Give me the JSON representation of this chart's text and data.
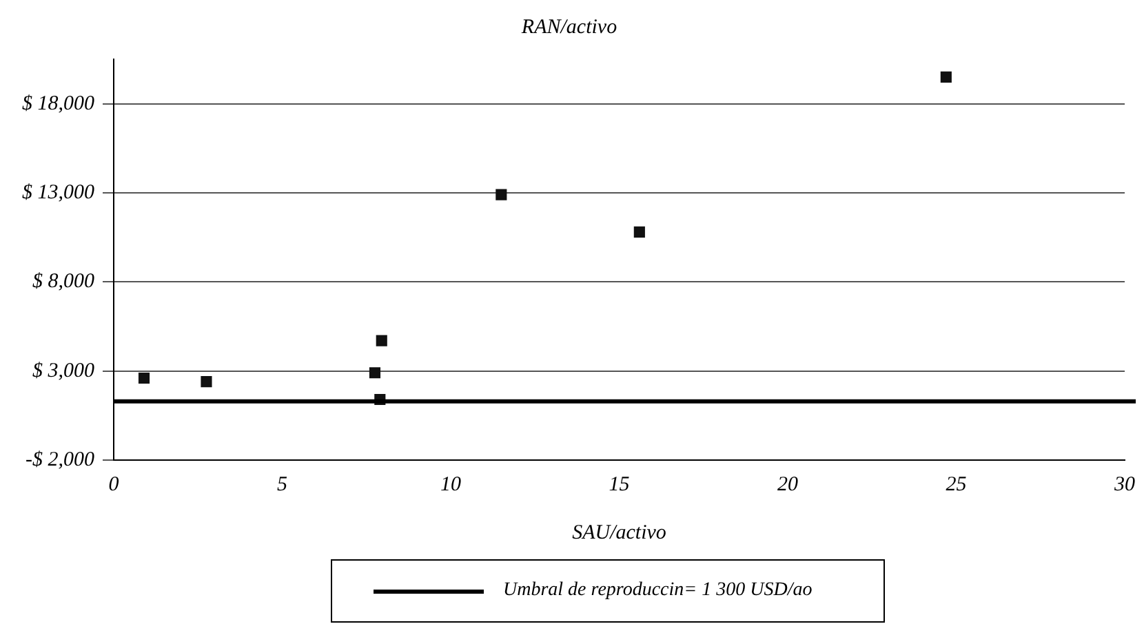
{
  "chart_data": {
    "type": "scatter",
    "title": "RAN/activo",
    "xlabel": "SAU/activo",
    "x": [
      0.9,
      2.75,
      7.75,
      7.95,
      7.9,
      11.5,
      15.6,
      24.7
    ],
    "series": [
      {
        "color": "#111111",
        "values": [
          2600,
          2400,
          2900,
          4700,
          1400,
          12900,
          10800,
          19500
        ]
      }
    ],
    "xlim": [
      0,
      30
    ],
    "xticks": [
      0,
      5,
      10,
      15,
      20,
      25,
      30
    ],
    "ylim": [
      -2000,
      20500
    ],
    "yticks": [
      {
        "value": -2000,
        "label": "-$ 2,000"
      },
      {
        "value": 3000,
        "label": "$ 3,000"
      },
      {
        "value": 8000,
        "label": "$ 8,000"
      },
      {
        "value": 13000,
        "label": "$ 13,000"
      },
      {
        "value": 18000,
        "label": "$ 18,000"
      }
    ],
    "ref_lines": [
      {
        "axis": "y",
        "value": 1300,
        "label": "Umbral de reproduccin= 1 300 USD/ao",
        "color": "#000000",
        "line_style": "solid"
      }
    ],
    "grid": "y",
    "legend": "bottom",
    "marker": "square"
  }
}
